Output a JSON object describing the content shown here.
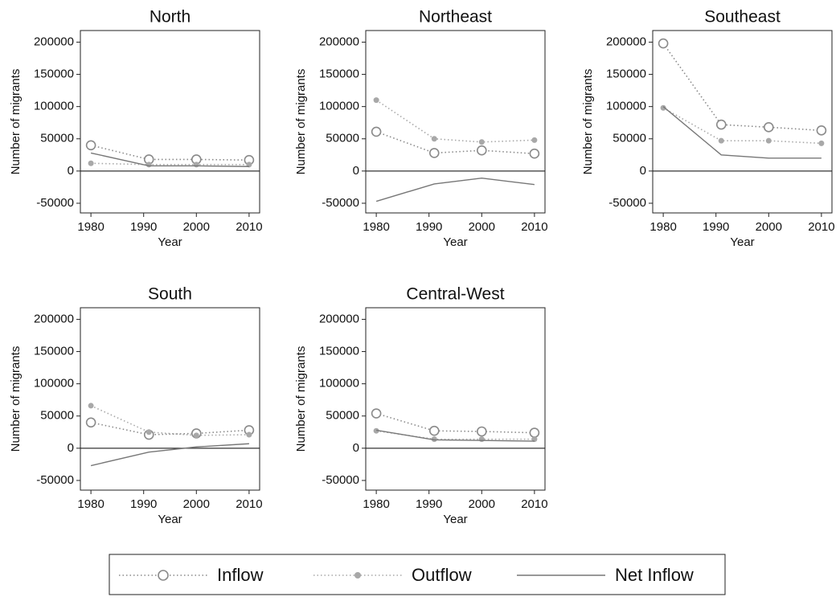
{
  "chart_data": [
    {
      "type": "line",
      "title": "North",
      "xlabel": "Year",
      "ylabel": "Number of migrants",
      "x": [
        1980,
        1991,
        2000,
        2010
      ],
      "xlim": [
        1978,
        2012
      ],
      "xticks": [
        1980,
        1990,
        2000,
        2010
      ],
      "ylim": [
        -65000,
        218000
      ],
      "yticks": [
        -50000,
        0,
        50000,
        100000,
        150000,
        200000
      ],
      "series": [
        {
          "name": "Inflow",
          "color": "#8a8a8a",
          "line": "dotted",
          "marker": "hollow",
          "values": [
            40000,
            18000,
            18000,
            17000
          ]
        },
        {
          "name": "Outflow",
          "color": "#a8a8a8",
          "line": "dotted",
          "marker": "filled",
          "values": [
            12000,
            10000,
            10000,
            10000
          ]
        },
        {
          "name": "Net Inflow",
          "color": "#777777",
          "line": "solid",
          "marker": "none",
          "values": [
            28000,
            8000,
            8000,
            7000
          ]
        }
      ]
    },
    {
      "type": "line",
      "title": "Northeast",
      "xlabel": "Year",
      "ylabel": "Number of migrants",
      "x": [
        1980,
        1991,
        2000,
        2010
      ],
      "xlim": [
        1978,
        2012
      ],
      "xticks": [
        1980,
        1990,
        2000,
        2010
      ],
      "ylim": [
        -65000,
        218000
      ],
      "yticks": [
        -50000,
        0,
        50000,
        100000,
        150000,
        200000
      ],
      "series": [
        {
          "name": "Inflow",
          "color": "#8a8a8a",
          "line": "dotted",
          "marker": "hollow",
          "values": [
            61000,
            28000,
            32000,
            27000
          ]
        },
        {
          "name": "Outflow",
          "color": "#a8a8a8",
          "line": "dotted",
          "marker": "filled",
          "values": [
            110000,
            50000,
            45000,
            48000
          ]
        },
        {
          "name": "Net Inflow",
          "color": "#777777",
          "line": "solid",
          "marker": "none",
          "values": [
            -47000,
            -20000,
            -11000,
            -21000
          ]
        }
      ]
    },
    {
      "type": "line",
      "title": "Southeast",
      "xlabel": "Year",
      "ylabel": "Number of migrants",
      "x": [
        1980,
        1991,
        2000,
        2010
      ],
      "xlim": [
        1978,
        2012
      ],
      "xticks": [
        1980,
        1990,
        2000,
        2010
      ],
      "ylim": [
        -65000,
        218000
      ],
      "yticks": [
        -50000,
        0,
        50000,
        100000,
        150000,
        200000
      ],
      "series": [
        {
          "name": "Inflow",
          "color": "#8a8a8a",
          "line": "dotted",
          "marker": "hollow",
          "values": [
            198000,
            72000,
            68000,
            63000
          ]
        },
        {
          "name": "Outflow",
          "color": "#a8a8a8",
          "line": "dotted",
          "marker": "filled",
          "values": [
            98000,
            47000,
            47000,
            43000
          ]
        },
        {
          "name": "Net Inflow",
          "color": "#777777",
          "line": "solid",
          "marker": "none",
          "values": [
            100000,
            25000,
            20000,
            20000
          ]
        }
      ]
    },
    {
      "type": "line",
      "title": "South",
      "xlabel": "Year",
      "ylabel": "Number of migrants",
      "x": [
        1980,
        1991,
        2000,
        2010
      ],
      "xlim": [
        1978,
        2012
      ],
      "xticks": [
        1980,
        1990,
        2000,
        2010
      ],
      "ylim": [
        -65000,
        218000
      ],
      "yticks": [
        -50000,
        0,
        50000,
        100000,
        150000,
        200000
      ],
      "series": [
        {
          "name": "Inflow",
          "color": "#8a8a8a",
          "line": "dotted",
          "marker": "hollow",
          "values": [
            40000,
            21000,
            23000,
            28000
          ]
        },
        {
          "name": "Outflow",
          "color": "#a8a8a8",
          "line": "dotted",
          "marker": "filled",
          "values": [
            66000,
            25000,
            20000,
            21000
          ]
        },
        {
          "name": "Net Inflow",
          "color": "#777777",
          "line": "solid",
          "marker": "none",
          "values": [
            -27000,
            -6000,
            2000,
            7000
          ]
        }
      ]
    },
    {
      "type": "line",
      "title": "Central-West",
      "xlabel": "Year",
      "ylabel": "Number of migrants",
      "x": [
        1980,
        1991,
        2000,
        2010
      ],
      "xlim": [
        1978,
        2012
      ],
      "xticks": [
        1980,
        1990,
        2000,
        2010
      ],
      "ylim": [
        -65000,
        218000
      ],
      "yticks": [
        -50000,
        0,
        50000,
        100000,
        150000,
        200000
      ],
      "series": [
        {
          "name": "Inflow",
          "color": "#8a8a8a",
          "line": "dotted",
          "marker": "hollow",
          "values": [
            54000,
            27000,
            26000,
            24000
          ]
        },
        {
          "name": "Outflow",
          "color": "#a8a8a8",
          "line": "dotted",
          "marker": "filled",
          "values": [
            27000,
            14000,
            14000,
            14000
          ]
        },
        {
          "name": "Net Inflow",
          "color": "#777777",
          "line": "solid",
          "marker": "none",
          "values": [
            28000,
            13000,
            12000,
            11000
          ]
        }
      ]
    }
  ]
}
